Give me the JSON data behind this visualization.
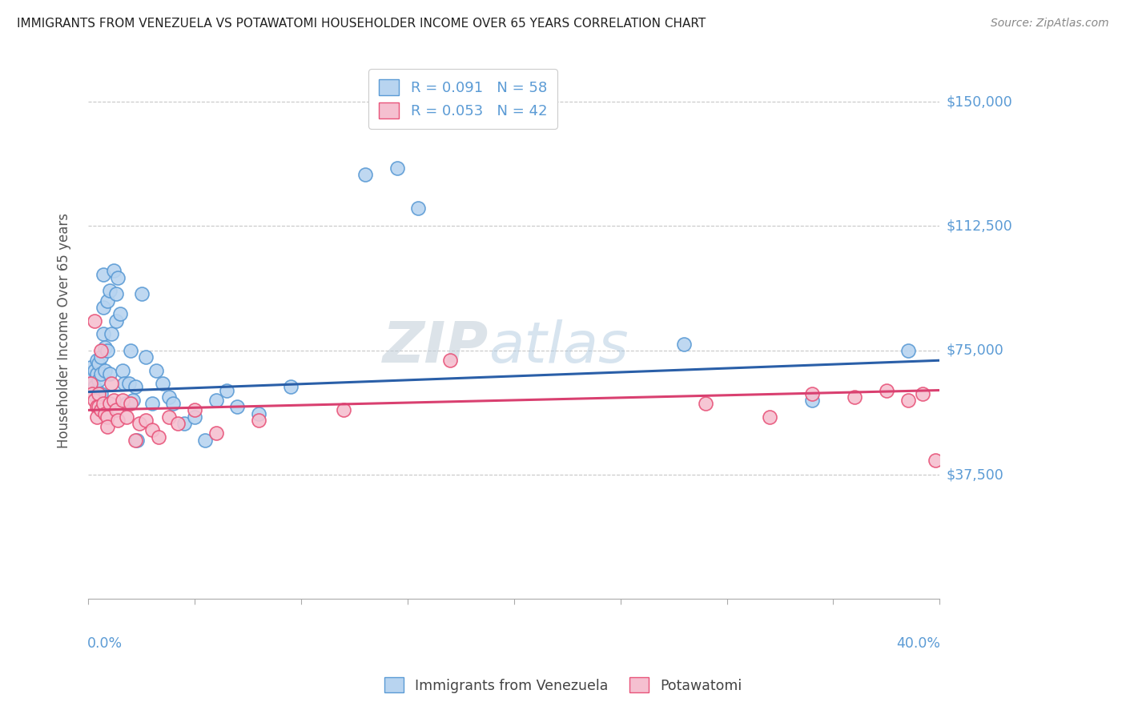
{
  "title": "IMMIGRANTS FROM VENEZUELA VS POTAWATOMI HOUSEHOLDER INCOME OVER 65 YEARS CORRELATION CHART",
  "source": "Source: ZipAtlas.com",
  "ylabel": "Householder Income Over 65 years",
  "ytick_labels": [
    "$37,500",
    "$75,000",
    "$112,500",
    "$150,000"
  ],
  "ytick_values": [
    37500,
    75000,
    112500,
    150000
  ],
  "xlim": [
    0.0,
    0.4
  ],
  "ylim": [
    0,
    162000
  ],
  "series_labels": [
    "Immigrants from Venezuela",
    "Potawatomi"
  ],
  "blue_color": "#5b9bd5",
  "pink_color": "#e8547a",
  "blue_fill": "#b8d4f0",
  "pink_fill": "#f5c0d0",
  "trend_blue_color": "#2a5fa8",
  "trend_pink_color": "#d94070",
  "watermark_color": "#d0dff0",
  "blue_R": 0.091,
  "blue_N": 58,
  "pink_R": 0.053,
  "pink_N": 42,
  "blue_x": [
    0.001,
    0.002,
    0.002,
    0.003,
    0.003,
    0.004,
    0.004,
    0.004,
    0.005,
    0.005,
    0.005,
    0.006,
    0.006,
    0.006,
    0.007,
    0.007,
    0.007,
    0.008,
    0.008,
    0.009,
    0.009,
    0.01,
    0.01,
    0.011,
    0.012,
    0.013,
    0.013,
    0.014,
    0.015,
    0.016,
    0.017,
    0.018,
    0.019,
    0.02,
    0.021,
    0.022,
    0.023,
    0.025,
    0.027,
    0.03,
    0.032,
    0.035,
    0.038,
    0.04,
    0.045,
    0.05,
    0.055,
    0.06,
    0.065,
    0.07,
    0.08,
    0.095,
    0.13,
    0.145,
    0.155,
    0.28,
    0.34,
    0.385
  ],
  "blue_y": [
    70000,
    67000,
    65000,
    69000,
    64000,
    72000,
    68000,
    63000,
    71000,
    66000,
    61000,
    73000,
    68000,
    62000,
    98000,
    88000,
    80000,
    76000,
    69000,
    90000,
    75000,
    93000,
    68000,
    80000,
    99000,
    92000,
    84000,
    97000,
    86000,
    69000,
    65000,
    59000,
    65000,
    75000,
    60000,
    64000,
    48000,
    92000,
    73000,
    59000,
    69000,
    65000,
    61000,
    59000,
    53000,
    55000,
    48000,
    60000,
    63000,
    58000,
    56000,
    64000,
    128000,
    130000,
    118000,
    77000,
    60000,
    75000
  ],
  "pink_x": [
    0.001,
    0.002,
    0.003,
    0.003,
    0.004,
    0.004,
    0.005,
    0.005,
    0.006,
    0.006,
    0.007,
    0.008,
    0.009,
    0.009,
    0.01,
    0.011,
    0.012,
    0.013,
    0.014,
    0.016,
    0.018,
    0.02,
    0.022,
    0.024,
    0.027,
    0.03,
    0.033,
    0.038,
    0.042,
    0.05,
    0.06,
    0.08,
    0.12,
    0.17,
    0.29,
    0.32,
    0.34,
    0.36,
    0.375,
    0.385,
    0.392,
    0.398
  ],
  "pink_y": [
    65000,
    62000,
    84000,
    60000,
    58000,
    55000,
    62000,
    58000,
    75000,
    57000,
    59000,
    56000,
    55000,
    52000,
    59000,
    65000,
    60000,
    57000,
    54000,
    60000,
    55000,
    59000,
    48000,
    53000,
    54000,
    51000,
    49000,
    55000,
    53000,
    57000,
    50000,
    54000,
    57000,
    72000,
    59000,
    55000,
    62000,
    61000,
    63000,
    60000,
    62000,
    42000
  ],
  "blue_trend_x": [
    0.0,
    0.4
  ],
  "blue_trend_y": [
    62500,
    72000
  ],
  "pink_trend_x": [
    0.0,
    0.4
  ],
  "pink_trend_y": [
    57000,
    63000
  ]
}
